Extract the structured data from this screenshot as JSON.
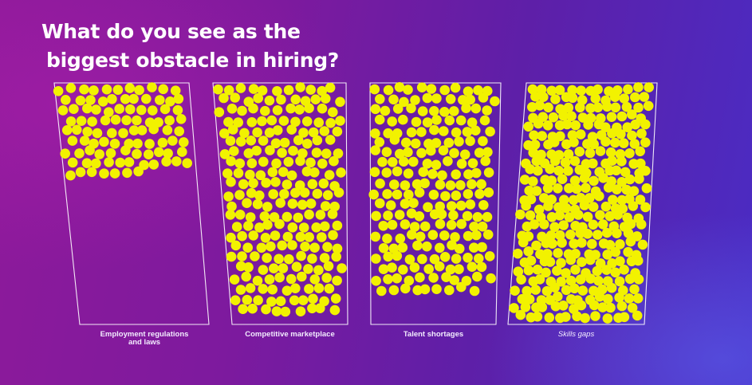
{
  "question": {
    "line1": "What do you see as the",
    "line2": "biggest obstacle in hiring?"
  },
  "chart_data": {
    "type": "bar",
    "title": "What do you see as the biggest obstacle in hiring?",
    "categories": [
      "Employment regulations and laws",
      "Competitive marketplace",
      "Talent shortages",
      "Skills gaps"
    ],
    "category_label_lines": [
      [
        "Employment regulations",
        "and laws"
      ],
      [
        "Competitive marketplace"
      ],
      [
        "Talent shortages"
      ],
      [
        "Skills gaps"
      ]
    ],
    "values": [
      95,
      235,
      210,
      390
    ],
    "dot_color": "#f2f200",
    "outline_color": "#ffffff"
  }
}
